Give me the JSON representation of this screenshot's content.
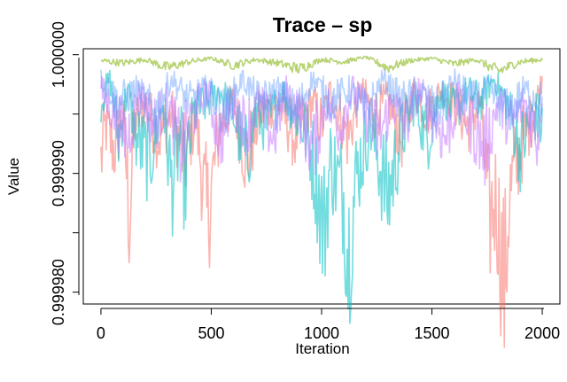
{
  "chart_data": {
    "type": "line",
    "title": "Trace – sp",
    "xlabel": "Iteration",
    "ylabel": "Value",
    "xlim": [
      -80,
      2080
    ],
    "ylim": [
      0.999979,
      1.0000005
    ],
    "x_ticks": [
      0,
      500,
      1000,
      1500,
      2000
    ],
    "x_tick_labels": [
      "0",
      "500",
      "1000",
      "1500",
      "2000"
    ],
    "y_ticks": [
      0.99998,
      0.99999,
      1.0
    ],
    "y_tick_labels": [
      "0.999980",
      "0.999990",
      "1.000000"
    ],
    "y_minor_ticks": [
      0.999985,
      0.999995
    ],
    "grid": false,
    "legend": "none",
    "iterations": [
      0,
      2000
    ],
    "series": [
      {
        "color": "#F8766D",
        "opacity": 0.55,
        "waypoints": {
          "x": [
            0,
            20,
            60,
            100,
            130,
            150,
            200,
            260,
            320,
            380,
            430,
            480,
            540,
            600,
            660,
            720,
            800,
            880,
            960,
            1000,
            1040,
            1080,
            1120,
            1180,
            1240,
            1300,
            1360,
            1420,
            1480,
            1540,
            1600,
            1660,
            1720,
            1760,
            1790,
            1810,
            1830,
            1850,
            1900,
            1960,
            2000
          ],
          "y": [
            0.999991,
            0.999994,
            0.999992,
            0.999995,
            0.999986,
            0.999994,
            0.999996,
            0.999993,
            0.999995,
            0.999991,
            0.999995,
            0.999986,
            0.999994,
            0.999996,
            0.999991,
            0.999995,
            0.999996,
            0.999993,
            0.999996,
            0.999994,
            0.999997,
            0.999995,
            0.999993,
            0.999997,
            0.999995,
            0.999996,
            0.999993,
            0.999997,
            0.999995,
            0.999997,
            0.999996,
            0.999994,
            0.999996,
            0.999986,
            0.999988,
            0.999984,
            0.99998,
            0.999988,
            0.999992,
            0.999995,
            0.999998
          ]
        }
      },
      {
        "color": "#00BFC4",
        "opacity": 0.55,
        "waypoints": {
          "x": [
            0,
            40,
            80,
            120,
            160,
            220,
            280,
            320,
            360,
            380,
            420,
            480,
            540,
            600,
            660,
            700,
            760,
            820,
            880,
            940,
            980,
            1010,
            1040,
            1080,
            1100,
            1120,
            1160,
            1220,
            1300,
            1360,
            1420,
            1480,
            1540,
            1600,
            1660,
            1720,
            1780,
            1840,
            1900,
            1960,
            2000
          ],
          "y": [
            0.999996,
            0.999998,
            0.999993,
            0.999997,
            0.999993,
            0.999991,
            0.999996,
            0.999989,
            0.999993,
            0.999989,
            0.999995,
            0.999996,
            0.999997,
            0.999995,
            0.999991,
            0.999995,
            0.999994,
            0.999997,
            0.999995,
            0.999993,
            0.999989,
            0.999985,
            0.999991,
            0.999989,
            0.999988,
            0.999983,
            0.99999,
            0.999994,
            0.999988,
            0.999993,
            0.999996,
            0.999993,
            0.999997,
            0.999995,
            0.999997,
            0.999996,
            0.999998,
            0.999996,
            0.999992,
            0.999995,
            0.999994
          ]
        }
      },
      {
        "color": "#7CAE00",
        "opacity": 0.55,
        "waypoints": {
          "x": [
            0,
            100,
            200,
            300,
            400,
            500,
            600,
            700,
            800,
            900,
            1000,
            1100,
            1200,
            1300,
            1400,
            1500,
            1600,
            1700,
            1800,
            1900,
            2000
          ],
          "y": [
            0.9999995,
            0.9999993,
            0.9999996,
            0.9999989,
            0.9999994,
            0.9999997,
            0.9999991,
            0.9999996,
            0.9999993,
            0.9999988,
            0.9999996,
            0.9999994,
            0.9999998,
            0.9999989,
            0.9999995,
            0.9999997,
            0.9999992,
            0.9999996,
            0.9999986,
            0.9999994,
            0.9999996
          ]
        }
      },
      {
        "color": "#C77CFF",
        "opacity": 0.55,
        "waypoints": {
          "x": [
            0,
            60,
            120,
            180,
            240,
            300,
            360,
            420,
            480,
            540,
            600,
            660,
            720,
            780,
            840,
            900,
            960,
            1020,
            1080,
            1140,
            1200,
            1260,
            1320,
            1380,
            1440,
            1500,
            1560,
            1620,
            1680,
            1740,
            1800,
            1860,
            1920,
            1980,
            2000
          ],
          "y": [
            0.999997,
            0.999995,
            0.999993,
            0.999997,
            0.999994,
            0.999996,
            0.999992,
            0.999995,
            0.999997,
            0.999993,
            0.999996,
            0.999994,
            0.999996,
            0.999993,
            0.999997,
            0.999995,
            0.999992,
            0.999996,
            0.999994,
            0.999997,
            0.999995,
            0.999993,
            0.999996,
            0.999994,
            0.999997,
            0.999995,
            0.999993,
            0.999996,
            0.999994,
            0.999992,
            0.999996,
            0.999994,
            0.999996,
            0.999993,
            0.999997
          ]
        }
      },
      {
        "color": "#619CFF",
        "opacity": 0.45,
        "waypoints": {
          "x": [
            0,
            80,
            160,
            240,
            320,
            400,
            480,
            560,
            640,
            720,
            800,
            880,
            960,
            1040,
            1120,
            1200,
            1280,
            1360,
            1440,
            1520,
            1600,
            1680,
            1760,
            1840,
            1920,
            2000
          ],
          "y": [
            0.999998,
            0.999996,
            0.999997,
            0.999995,
            0.999998,
            0.999996,
            0.999997,
            0.999995,
            0.999998,
            0.999996,
            0.999997,
            0.999995,
            0.999998,
            0.999996,
            0.999997,
            0.999995,
            0.999998,
            0.999996,
            0.999997,
            0.999995,
            0.999998,
            0.999996,
            0.999997,
            0.999995,
            0.999997,
            0.999996
          ]
        }
      }
    ]
  }
}
